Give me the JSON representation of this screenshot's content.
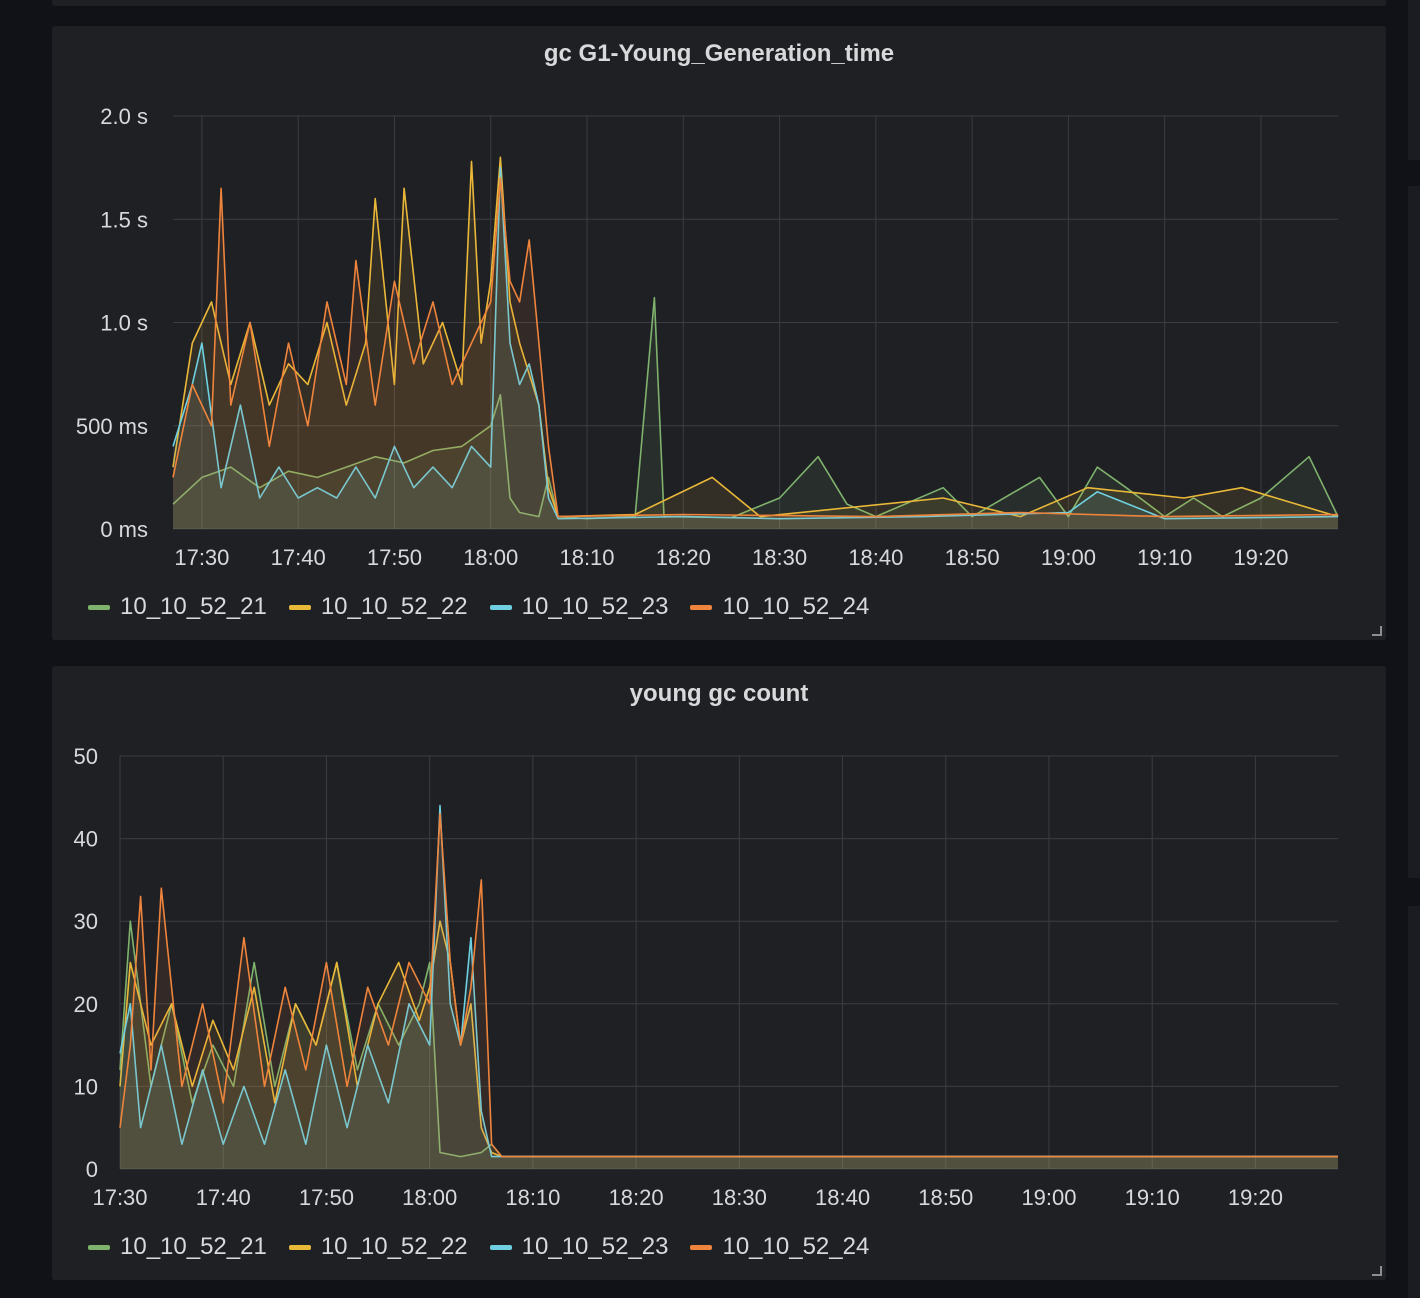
{
  "colors": {
    "background": "#111217",
    "panel": "#1f2024",
    "grid": "#3b3d42",
    "text": "#d8d9da",
    "series": [
      "#7eb26d",
      "#eab839",
      "#6ed0e0",
      "#ef843c"
    ]
  },
  "chart_data": [
    {
      "type": "line",
      "title": "gc G1-Young_Generation_time",
      "xlabel": "",
      "ylabel": "",
      "x_range": [
        "17:27",
        "19:28"
      ],
      "x_ticks": [
        "17:30",
        "17:40",
        "17:50",
        "18:00",
        "18:10",
        "18:20",
        "18:30",
        "18:40",
        "18:50",
        "19:00",
        "19:10",
        "19:20"
      ],
      "y_ticks": [
        {
          "value": 0,
          "label": "0 ms"
        },
        {
          "value": 500,
          "label": "500 ms"
        },
        {
          "value": 1000,
          "label": "1.0 s"
        },
        {
          "value": 1500,
          "label": "1.5 s"
        },
        {
          "value": 2000,
          "label": "2.0 s"
        }
      ],
      "ylim": [
        0,
        2000
      ],
      "y_unit": "ms",
      "grid": true,
      "legend_position": "bottom",
      "series": [
        {
          "name": "10_10_52_21",
          "values": [
            [
              "17:27",
              120
            ],
            [
              "17:30",
              250
            ],
            [
              "17:33",
              300
            ],
            [
              "17:36",
              200
            ],
            [
              "17:39",
              280
            ],
            [
              "17:42",
              250
            ],
            [
              "17:45",
              300
            ],
            [
              "17:48",
              350
            ],
            [
              "17:51",
              320
            ],
            [
              "17:54",
              380
            ],
            [
              "17:57",
              400
            ],
            [
              "18:00",
              500
            ],
            [
              "18:01",
              650
            ],
            [
              "18:02",
              150
            ],
            [
              "18:03",
              80
            ],
            [
              "18:05",
              60
            ],
            [
              "18:06",
              250
            ],
            [
              "18:07",
              60
            ],
            [
              "18:10",
              50
            ],
            [
              "18:15",
              60
            ],
            [
              "18:17",
              1120
            ],
            [
              "18:18",
              60
            ],
            [
              "18:25",
              55
            ],
            [
              "18:30",
              150
            ],
            [
              "18:34",
              350
            ],
            [
              "18:37",
              120
            ],
            [
              "18:40",
              60
            ],
            [
              "18:47",
              200
            ],
            [
              "18:50",
              60
            ],
            [
              "18:57",
              250
            ],
            [
              "19:00",
              60
            ],
            [
              "19:03",
              300
            ],
            [
              "19:06",
              200
            ],
            [
              "19:10",
              60
            ],
            [
              "19:13",
              150
            ],
            [
              "19:16",
              60
            ],
            [
              "19:20",
              150
            ],
            [
              "19:25",
              350
            ],
            [
              "19:28",
              60
            ]
          ]
        },
        {
          "name": "10_10_52_22",
          "values": [
            [
              "17:27",
              300
            ],
            [
              "17:29",
              900
            ],
            [
              "17:31",
              1100
            ],
            [
              "17:33",
              700
            ],
            [
              "17:35",
              1000
            ],
            [
              "17:37",
              600
            ],
            [
              "17:39",
              800
            ],
            [
              "17:41",
              700
            ],
            [
              "17:43",
              1000
            ],
            [
              "17:45",
              600
            ],
            [
              "17:47",
              900
            ],
            [
              "17:48",
              1600
            ],
            [
              "17:50",
              700
            ],
            [
              "17:51",
              1650
            ],
            [
              "17:53",
              800
            ],
            [
              "17:55",
              1000
            ],
            [
              "17:57",
              700
            ],
            [
              "17:58",
              1780
            ],
            [
              "17:59",
              900
            ],
            [
              "18:00",
              1200
            ],
            [
              "18:01",
              1800
            ],
            [
              "18:02",
              1100
            ],
            [
              "18:03",
              900
            ],
            [
              "18:05",
              600
            ],
            [
              "18:06",
              200
            ],
            [
              "18:07",
              60
            ],
            [
              "18:15",
              70
            ],
            [
              "18:23",
              250
            ],
            [
              "18:28",
              60
            ],
            [
              "18:47",
              150
            ],
            [
              "18:55",
              60
            ],
            [
              "19:02",
              200
            ],
            [
              "19:12",
              150
            ],
            [
              "19:18",
              200
            ],
            [
              "19:28",
              60
            ]
          ]
        },
        {
          "name": "10_10_52_23",
          "values": [
            [
              "17:27",
              400
            ],
            [
              "17:29",
              700
            ],
            [
              "17:30",
              900
            ],
            [
              "17:32",
              200
            ],
            [
              "17:34",
              600
            ],
            [
              "17:36",
              150
            ],
            [
              "17:38",
              300
            ],
            [
              "17:40",
              150
            ],
            [
              "17:42",
              200
            ],
            [
              "17:44",
              150
            ],
            [
              "17:46",
              300
            ],
            [
              "17:48",
              150
            ],
            [
              "17:50",
              400
            ],
            [
              "17:52",
              200
            ],
            [
              "17:54",
              300
            ],
            [
              "17:56",
              200
            ],
            [
              "17:58",
              400
            ],
            [
              "18:00",
              300
            ],
            [
              "18:01",
              1750
            ],
            [
              "18:02",
              900
            ],
            [
              "18:03",
              700
            ],
            [
              "18:04",
              800
            ],
            [
              "18:05",
              600
            ],
            [
              "18:06",
              150
            ],
            [
              "18:07",
              50
            ],
            [
              "18:20",
              60
            ],
            [
              "18:30",
              50
            ],
            [
              "18:45",
              60
            ],
            [
              "19:00",
              80
            ],
            [
              "19:03",
              180
            ],
            [
              "19:10",
              50
            ],
            [
              "19:28",
              60
            ]
          ]
        },
        {
          "name": "10_10_52_24",
          "values": [
            [
              "17:27",
              250
            ],
            [
              "17:29",
              700
            ],
            [
              "17:31",
              500
            ],
            [
              "17:32",
              1650
            ],
            [
              "17:33",
              600
            ],
            [
              "17:35",
              1000
            ],
            [
              "17:37",
              400
            ],
            [
              "17:39",
              900
            ],
            [
              "17:41",
              500
            ],
            [
              "17:43",
              1100
            ],
            [
              "17:45",
              700
            ],
            [
              "17:46",
              1300
            ],
            [
              "17:48",
              600
            ],
            [
              "17:50",
              1200
            ],
            [
              "17:52",
              800
            ],
            [
              "17:54",
              1100
            ],
            [
              "17:56",
              700
            ],
            [
              "17:58",
              900
            ],
            [
              "18:00",
              1100
            ],
            [
              "18:01",
              1700
            ],
            [
              "18:02",
              1200
            ],
            [
              "18:03",
              1100
            ],
            [
              "18:04",
              1400
            ],
            [
              "18:05",
              900
            ],
            [
              "18:06",
              400
            ],
            [
              "18:07",
              60
            ],
            [
              "18:20",
              70
            ],
            [
              "18:40",
              60
            ],
            [
              "18:55",
              80
            ],
            [
              "19:10",
              60
            ],
            [
              "19:28",
              70
            ]
          ]
        }
      ]
    },
    {
      "type": "line",
      "title": "young gc count",
      "xlabel": "",
      "ylabel": "",
      "x_range": [
        "17:30",
        "19:28"
      ],
      "x_ticks": [
        "17:30",
        "17:40",
        "17:50",
        "18:00",
        "18:10",
        "18:20",
        "18:30",
        "18:40",
        "18:50",
        "19:00",
        "19:10",
        "19:20"
      ],
      "y_ticks": [
        {
          "value": 0,
          "label": "0"
        },
        {
          "value": 10,
          "label": "10"
        },
        {
          "value": 20,
          "label": "20"
        },
        {
          "value": 30,
          "label": "30"
        },
        {
          "value": 40,
          "label": "40"
        },
        {
          "value": 50,
          "label": "50"
        }
      ],
      "ylim": [
        0,
        50
      ],
      "grid": true,
      "legend_position": "bottom",
      "series": [
        {
          "name": "10_10_52_21",
          "values": [
            [
              "17:30",
              12
            ],
            [
              "17:31",
              30
            ],
            [
              "17:33",
              10
            ],
            [
              "17:35",
              20
            ],
            [
              "17:37",
              8
            ],
            [
              "17:39",
              15
            ],
            [
              "17:41",
              10
            ],
            [
              "17:43",
              25
            ],
            [
              "17:45",
              10
            ],
            [
              "17:47",
              20
            ],
            [
              "17:49",
              15
            ],
            [
              "17:51",
              25
            ],
            [
              "17:53",
              12
            ],
            [
              "17:55",
              20
            ],
            [
              "17:57",
              15
            ],
            [
              "17:59",
              20
            ],
            [
              "18:00",
              25
            ],
            [
              "18:01",
              2
            ],
            [
              "18:03",
              1.5
            ],
            [
              "18:05",
              2
            ],
            [
              "18:06",
              3
            ],
            [
              "18:07",
              1.5
            ],
            [
              "18:30",
              1.5
            ],
            [
              "19:00",
              1.5
            ],
            [
              "19:28",
              1.5
            ]
          ]
        },
        {
          "name": "10_10_52_22",
          "values": [
            [
              "17:30",
              10
            ],
            [
              "17:31",
              25
            ],
            [
              "17:33",
              15
            ],
            [
              "17:35",
              20
            ],
            [
              "17:37",
              10
            ],
            [
              "17:39",
              18
            ],
            [
              "17:41",
              12
            ],
            [
              "17:43",
              22
            ],
            [
              "17:45",
              8
            ],
            [
              "17:47",
              20
            ],
            [
              "17:49",
              15
            ],
            [
              "17:51",
              25
            ],
            [
              "17:53",
              10
            ],
            [
              "17:55",
              20
            ],
            [
              "17:57",
              25
            ],
            [
              "17:59",
              18
            ],
            [
              "18:00",
              22
            ],
            [
              "18:01",
              30
            ],
            [
              "18:02",
              25
            ],
            [
              "18:03",
              15
            ],
            [
              "18:04",
              20
            ],
            [
              "18:05",
              5
            ],
            [
              "18:06",
              2
            ],
            [
              "18:07",
              1.5
            ],
            [
              "19:28",
              1.5
            ]
          ]
        },
        {
          "name": "10_10_52_23",
          "values": [
            [
              "17:30",
              14
            ],
            [
              "17:31",
              20
            ],
            [
              "17:32",
              5
            ],
            [
              "17:34",
              15
            ],
            [
              "17:36",
              3
            ],
            [
              "17:38",
              12
            ],
            [
              "17:40",
              3
            ],
            [
              "17:42",
              10
            ],
            [
              "17:44",
              3
            ],
            [
              "17:46",
              12
            ],
            [
              "17:48",
              3
            ],
            [
              "17:50",
              15
            ],
            [
              "17:52",
              5
            ],
            [
              "17:54",
              15
            ],
            [
              "17:56",
              8
            ],
            [
              "17:58",
              20
            ],
            [
              "18:00",
              15
            ],
            [
              "18:01",
              44
            ],
            [
              "18:02",
              20
            ],
            [
              "18:03",
              15
            ],
            [
              "18:04",
              28
            ],
            [
              "18:05",
              7
            ],
            [
              "18:06",
              1.5
            ],
            [
              "18:20",
              1.5
            ],
            [
              "19:28",
              1.5
            ]
          ]
        },
        {
          "name": "10_10_52_24",
          "values": [
            [
              "17:30",
              5
            ],
            [
              "17:31",
              15
            ],
            [
              "17:32",
              33
            ],
            [
              "17:33",
              12
            ],
            [
              "17:34",
              34
            ],
            [
              "17:36",
              10
            ],
            [
              "17:38",
              20
            ],
            [
              "17:40",
              8
            ],
            [
              "17:42",
              28
            ],
            [
              "17:44",
              10
            ],
            [
              "17:46",
              22
            ],
            [
              "17:48",
              12
            ],
            [
              "17:50",
              25
            ],
            [
              "17:52",
              10
            ],
            [
              "17:54",
              22
            ],
            [
              "17:56",
              15
            ],
            [
              "17:58",
              25
            ],
            [
              "18:00",
              20
            ],
            [
              "18:01",
              43
            ],
            [
              "18:02",
              25
            ],
            [
              "18:03",
              15
            ],
            [
              "18:04",
              22
            ],
            [
              "18:05",
              35
            ],
            [
              "18:06",
              3
            ],
            [
              "18:07",
              1.5
            ],
            [
              "19:28",
              1.5
            ]
          ]
        }
      ]
    }
  ]
}
